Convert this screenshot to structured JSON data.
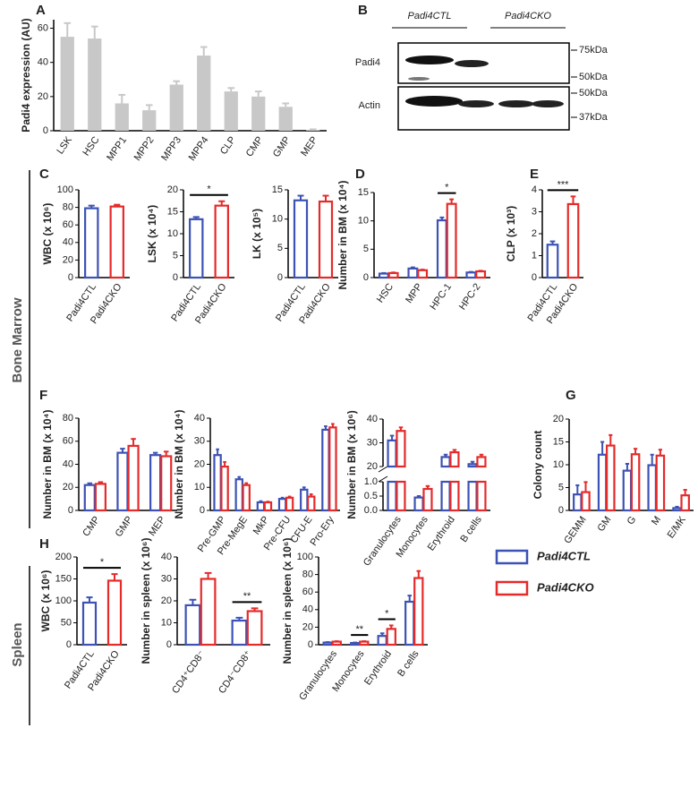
{
  "panel_labels": [
    "A",
    "B",
    "C",
    "D",
    "E",
    "F",
    "G",
    "H"
  ],
  "sections": [
    "Bone Marrow",
    "Spleen"
  ],
  "legend": [
    {
      "name": "Padi4CTL",
      "color": "#3c52b5"
    },
    {
      "name": "Padi4CKO",
      "color": "#e52a2a"
    }
  ],
  "blot": {
    "groups": [
      "Padi4CTL",
      "Padi4CKO"
    ],
    "rows": [
      {
        "label": "Padi4",
        "markers": [
          "75kDa",
          "50kDa"
        ]
      },
      {
        "label": "Actin",
        "markers": [
          "50kDa",
          "37kDa"
        ]
      }
    ]
  },
  "chart_data": [
    {
      "type": "bar",
      "bar_style": "filled",
      "ylabel": "Padi4 expression (AU)",
      "color": "#c8c8c8",
      "categories": [
        "LSK",
        "HSC",
        "MPP1",
        "MPP2",
        "MPP3",
        "MPP4",
        "CLP",
        "CMP",
        "GMP",
        "MEP"
      ],
      "values": [
        55,
        54,
        16,
        12,
        27,
        44,
        23,
        20,
        14,
        0.5
      ],
      "errors": [
        8,
        7,
        5,
        3,
        2,
        5,
        2,
        3,
        2,
        0.3
      ],
      "ylim": [
        0,
        65
      ],
      "yticks": [
        0,
        20,
        40,
        60
      ]
    },
    {
      "type": "bar",
      "bar_style": "outline",
      "ylabel": "WBC (x 10⁶)",
      "categories": [
        "Padi4CTL",
        "Padi4CKO"
      ],
      "colors": [
        "#3c52b5",
        "#e52a2a"
      ],
      "values": [
        79,
        81
      ],
      "errors": [
        3,
        2
      ],
      "ylim": [
        0,
        100
      ],
      "yticks": [
        0,
        20,
        40,
        60,
        80,
        100
      ]
    },
    {
      "type": "bar",
      "bar_style": "outline",
      "ylabel": "LSK (x 10⁴)",
      "categories": [
        "Padi4CTL",
        "Padi4CKO"
      ],
      "colors": [
        "#3c52b5",
        "#e52a2a"
      ],
      "values": [
        13.3,
        16.4
      ],
      "errors": [
        0.5,
        1
      ],
      "ylim": [
        0,
        20
      ],
      "yticks": [
        0,
        5,
        10,
        15,
        20
      ],
      "annotations": [
        {
          "text": "*"
        }
      ]
    },
    {
      "type": "bar",
      "bar_style": "outline",
      "ylabel": "LK (x 10⁵)",
      "categories": [
        "Padi4CTL",
        "Padi4CKO"
      ],
      "colors": [
        "#3c52b5",
        "#e52a2a"
      ],
      "values": [
        13.2,
        13
      ],
      "errors": [
        0.8,
        1
      ],
      "ylim": [
        0,
        15
      ],
      "yticks": [
        0,
        5,
        10,
        15
      ]
    },
    {
      "type": "bar",
      "bar_style": "outline",
      "ylabel": "Number in BM (x 10⁴)",
      "categories": [
        "HSC",
        "MPP",
        "HPC-1",
        "HPC-2"
      ],
      "series": [
        {
          "color": "#3c52b5",
          "values": [
            0.7,
            1.6,
            10.1,
            0.9
          ],
          "errors": [
            0.1,
            0.2,
            0.5,
            0.1
          ]
        },
        {
          "color": "#e52a2a",
          "values": [
            0.8,
            1.3,
            13,
            1.1
          ],
          "errors": [
            0.1,
            0.1,
            0.8,
            0.1
          ]
        }
      ],
      "ylim": [
        0,
        15
      ],
      "yticks": [
        0,
        5,
        10,
        15
      ],
      "annotations": [
        {
          "text": "*",
          "category": "HPC-1"
        }
      ]
    },
    {
      "type": "bar",
      "bar_style": "outline",
      "ylabel": "CLP (x 10³)",
      "categories": [
        "Padi4CTL",
        "Padi4CKO"
      ],
      "colors": [
        "#3c52b5",
        "#e52a2a"
      ],
      "values": [
        1.5,
        3.35
      ],
      "errors": [
        0.15,
        0.35
      ],
      "ylim": [
        0,
        4
      ],
      "yticks": [
        0,
        1,
        2,
        3,
        4
      ],
      "annotations": [
        {
          "text": "***"
        }
      ]
    },
    {
      "type": "bar",
      "bar_style": "outline",
      "ylabel": "Number in BM (x 10⁴)",
      "categories": [
        "CMP",
        "GMP",
        "MEP"
      ],
      "series": [
        {
          "color": "#3c52b5",
          "values": [
            22,
            50,
            48
          ],
          "errors": [
            1.5,
            3.5,
            2
          ]
        },
        {
          "color": "#e52a2a",
          "values": [
            23,
            56,
            47
          ],
          "errors": [
            1.5,
            6,
            4
          ]
        }
      ],
      "ylim": [
        0,
        80
      ],
      "yticks": [
        0,
        20,
        40,
        60,
        80
      ]
    },
    {
      "type": "bar",
      "bar_style": "outline",
      "ylabel": "Number in BM (x 10⁴)",
      "categories": [
        "Pre-GMP",
        "Pre-MegE",
        "MkP",
        "Pre-CFU",
        "CFU-E",
        "Pro-Ery"
      ],
      "series": [
        {
          "color": "#3c52b5",
          "values": [
            24,
            13.5,
            3.5,
            5,
            9,
            35
          ],
          "errors": [
            2.5,
            1,
            0.5,
            0.5,
            1,
            1.5
          ]
        },
        {
          "color": "#e52a2a",
          "values": [
            19,
            11,
            3.5,
            5.5,
            6,
            36
          ],
          "errors": [
            2,
            0.8,
            0.3,
            0.5,
            1,
            1.5
          ]
        }
      ],
      "ylim": [
        0,
        40
      ],
      "yticks": [
        0,
        10,
        20,
        30,
        40
      ]
    },
    {
      "type": "broken-bar",
      "bar_style": "outline",
      "ylabel": "Number in BM (x 10⁶)",
      "categories": [
        "Granulocytes",
        "Monocytes",
        "Erythroid",
        "B cells"
      ],
      "series": [
        {
          "color": "#3c52b5",
          "values": [
            31,
            0.45,
            24,
            21
          ],
          "errors": [
            2,
            0.05,
            1,
            1
          ]
        },
        {
          "color": "#e52a2a",
          "values": [
            35,
            0.75,
            26,
            24
          ],
          "errors": [
            1.5,
            0.1,
            1,
            1
          ]
        }
      ],
      "ylim_lower": [
        0,
        1
      ],
      "yticks_lower": [
        {
          "value": 0,
          "label": "0.0"
        },
        0.5,
        {
          "value": 1,
          "label": "1.0"
        }
      ],
      "ylim_upper": [
        20,
        40
      ],
      "yticks_upper": [
        20,
        30,
        40
      ]
    },
    {
      "type": "bar",
      "bar_style": "outline",
      "ylabel": "Colony count",
      "categories": [
        "GEMM",
        "GM",
        "G",
        "M",
        "E/MK"
      ],
      "series": [
        {
          "color": "#3c52b5",
          "values": [
            3.5,
            12.2,
            8.7,
            9.9,
            0.5
          ],
          "errors": [
            2,
            2.8,
            1.5,
            2.3,
            0.3
          ]
        },
        {
          "color": "#e52a2a",
          "values": [
            4,
            14.2,
            12.3,
            12,
            3.3
          ],
          "errors": [
            2.2,
            2.3,
            1.2,
            1.3,
            1.2
          ]
        }
      ],
      "ylim": [
        0,
        20
      ],
      "yticks": [
        0,
        5,
        10,
        15,
        20
      ]
    },
    {
      "type": "bar",
      "bar_style": "outline",
      "ylabel": "WBC (x 10⁶)",
      "categories": [
        "Padi4CTL",
        "Padi4CKO"
      ],
      "colors": [
        "#3c52b5",
        "#e52a2a"
      ],
      "values": [
        96,
        146
      ],
      "errors": [
        12,
        15
      ],
      "ylim": [
        0,
        200
      ],
      "yticks": [
        0,
        50,
        100,
        150,
        200
      ],
      "annotations": [
        {
          "text": "*"
        }
      ]
    },
    {
      "type": "bar",
      "bar_style": "outline",
      "ylabel": "Number in spleen (x 10⁶)",
      "categories": [
        "CD4⁺CD8⁻",
        "CD4⁻CD8⁺"
      ],
      "series": [
        {
          "color": "#3c52b5",
          "values": [
            18,
            11
          ],
          "errors": [
            2.5,
            1.3
          ]
        },
        {
          "color": "#e52a2a",
          "values": [
            30,
            15.3
          ],
          "errors": [
            2.7,
            1.3
          ]
        }
      ],
      "ylim": [
        0,
        40
      ],
      "yticks": [
        0,
        10,
        20,
        30,
        40
      ],
      "annotations": [
        {
          "text": "**",
          "category": "CD4⁻CD8⁺"
        }
      ]
    },
    {
      "type": "bar",
      "bar_style": "outline",
      "ylabel": "Number in spleen (x 10⁶)",
      "categories": [
        "Granulocytes",
        "Monocytes",
        "Erythroid",
        "B cells"
      ],
      "series": [
        {
          "color": "#3c52b5",
          "values": [
            2.5,
            2,
            10,
            49
          ],
          "errors": [
            0.5,
            0.5,
            3,
            7
          ]
        },
        {
          "color": "#e52a2a",
          "values": [
            3.5,
            3.5,
            18,
            76
          ],
          "errors": [
            0.5,
            0.5,
            4,
            8
          ]
        }
      ],
      "ylim": [
        0,
        100
      ],
      "yticks": [
        0,
        20,
        40,
        60,
        80,
        100
      ],
      "annotations": [
        {
          "text": "**",
          "category": "Monocytes"
        },
        {
          "text": "*",
          "category": "Erythroid"
        }
      ]
    }
  ]
}
